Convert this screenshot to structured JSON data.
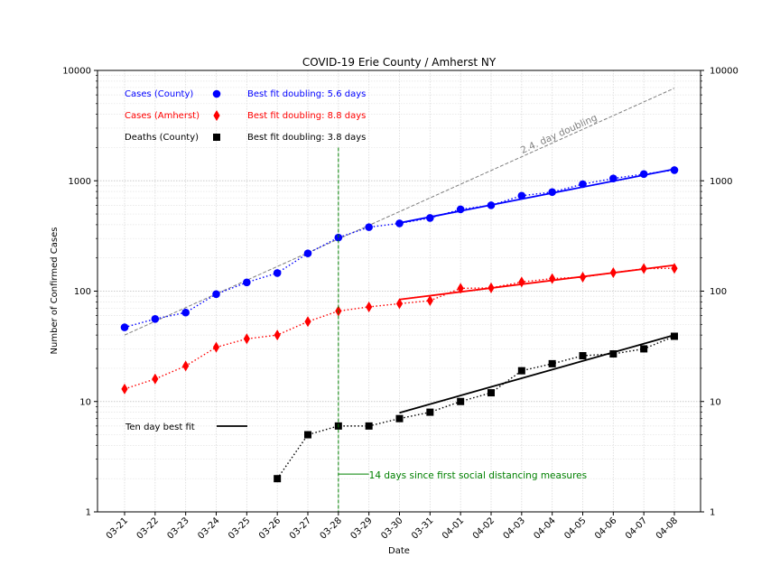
{
  "chart_data": {
    "type": "line",
    "title": "COVID-19 Erie County / Amherst NY",
    "xlabel": "Date",
    "ylabel": "Number of Confirmed Cases",
    "yscale": "log",
    "ylim": [
      1,
      10000
    ],
    "y_ticks": [
      1,
      10,
      100,
      1000,
      10000
    ],
    "y_tick_labels": [
      "1",
      "10",
      "100",
      "1000",
      "10000"
    ],
    "grid": true,
    "categories": [
      "03-21",
      "03-22",
      "03-23",
      "03-24",
      "03-25",
      "03-26",
      "03-27",
      "03-28",
      "03-29",
      "03-30",
      "03-31",
      "04-01",
      "04-02",
      "04-03",
      "04-04",
      "04-05",
      "04-06",
      "04-07",
      "04-08"
    ],
    "series": [
      {
        "name": "Cases (County)",
        "color": "#0000ff",
        "marker": "circle",
        "values": [
          47,
          56,
          64,
          94,
          120,
          146,
          220,
          306,
          380,
          411,
          460,
          551,
          600,
          732,
          790,
          932,
          1050,
          1150,
          1250
        ]
      },
      {
        "name": "Cases (Amherst)",
        "color": "#ff0000",
        "marker": "diamond",
        "values": [
          13,
          16,
          21,
          31,
          37,
          40,
          53,
          66,
          72,
          77,
          82,
          106,
          107,
          121,
          130,
          134,
          147,
          160,
          161
        ]
      },
      {
        "name": "Deaths (County)",
        "color": "#000000",
        "marker": "square",
        "values": [
          null,
          null,
          null,
          null,
          null,
          2,
          5,
          6,
          6,
          7,
          8,
          10,
          12,
          19,
          22,
          26,
          27,
          30,
          39
        ]
      }
    ],
    "fits": [
      {
        "series": "Cases (County)",
        "color": "#0000ff",
        "label": "Best fit doubling: 5.6 days",
        "start": 9,
        "end": 18,
        "y_start": 415,
        "y_end": 1275
      },
      {
        "series": "Cases (Amherst)",
        "color": "#ff0000",
        "label": "Best fit doubling: 8.8 days",
        "start": 9,
        "end": 18,
        "y_start": 84,
        "y_end": 172
      },
      {
        "series": "Deaths (County)",
        "color": "#000000",
        "label": "Best fit doubling: 3.8 days",
        "start": 9,
        "end": 18,
        "y_start": 7.9,
        "y_end": 40
      }
    ],
    "reference_line": {
      "label": "2.4. day doubling",
      "color": "#808080",
      "start": 0,
      "end": 18,
      "y_start": 40,
      "y_end": 6900
    },
    "vertical_marker": {
      "at": "03-28",
      "color": "#008000",
      "label": "14 days since first social distancing measures",
      "y_top": 2000,
      "y_label": 2.2
    },
    "legend_fit_label": "Ten day best fit",
    "legend_position": "upper-left"
  }
}
